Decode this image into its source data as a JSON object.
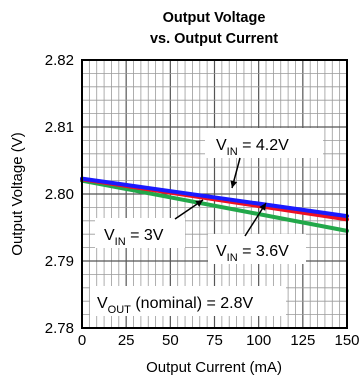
{
  "chart_data": {
    "type": "line",
    "title": [
      "Output Voltage",
      "vs. Output Current"
    ],
    "xlabel": "Output Current (mA)",
    "ylabel": "Output Voltage (V)",
    "xlim": [
      0,
      150
    ],
    "ylim": [
      2.78,
      2.82
    ],
    "x_ticks": [
      "0",
      "25",
      "50",
      "75",
      "100",
      "125",
      "150"
    ],
    "y_ticks": [
      "2.78",
      "2.79",
      "2.80",
      "2.81",
      "2.82"
    ],
    "grid": true,
    "x": [
      0,
      150
    ],
    "series": [
      {
        "name": "V_IN = 4.2V",
        "color": "#1a1aff",
        "values": [
          2.8023,
          2.7967
        ]
      },
      {
        "name": "V_IN = 3.6V",
        "color": "#ee1122",
        "values": [
          2.8022,
          2.7962
        ]
      },
      {
        "name": "V_IN = 3V",
        "color": "#22a84a",
        "values": [
          2.802,
          2.7945
        ]
      }
    ],
    "annotations": [
      {
        "main": "V",
        "sub": "IN",
        "rest": " = 4.2V"
      },
      {
        "main": "V",
        "sub": "IN",
        "rest": " = 3V"
      },
      {
        "main": "V",
        "sub": "IN",
        "rest": " = 3.6V"
      },
      {
        "main": "V",
        "sub": "OUT",
        "rest": " (nominal) = 2.8V"
      }
    ]
  }
}
